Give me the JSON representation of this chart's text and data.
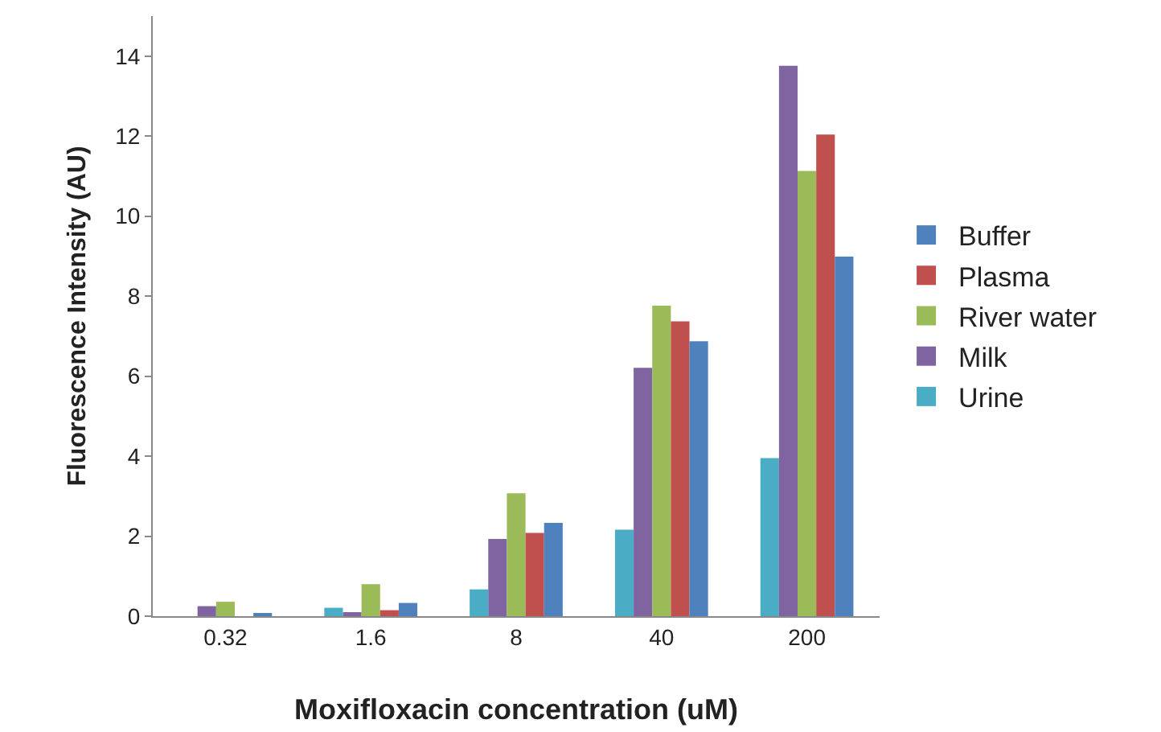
{
  "chart_data": {
    "type": "bar",
    "xlabel": "Moxifloxacin concentration (uM)",
    "ylabel": "Fluorescence Intensity (AU)",
    "categories": [
      "0.32",
      "1.6",
      "8",
      "40",
      "200"
    ],
    "series": [
      {
        "name": "Buffer",
        "color": "#4f81bd",
        "values": [
          0.07,
          0.33,
          2.33,
          6.87,
          8.99
        ]
      },
      {
        "name": "Plasma",
        "color": "#c0504d",
        "values": [
          0,
          0.15,
          2.08,
          7.37,
          12.04
        ]
      },
      {
        "name": "River water",
        "color": "#9bbb59",
        "values": [
          0.36,
          0.8,
          3.07,
          7.76,
          11.13
        ]
      },
      {
        "name": "Milk",
        "color": "#8064a2",
        "values": [
          0.25,
          0.1,
          1.93,
          6.21,
          13.76
        ]
      },
      {
        "name": "Urine",
        "color": "#4bacc6",
        "values": [
          0,
          0.21,
          0.67,
          2.16,
          3.95
        ]
      }
    ],
    "ylim": [
      0,
      15
    ],
    "yticks": [
      0,
      2,
      4,
      6,
      8,
      10,
      12,
      14
    ],
    "grid": false,
    "legend": "right"
  }
}
